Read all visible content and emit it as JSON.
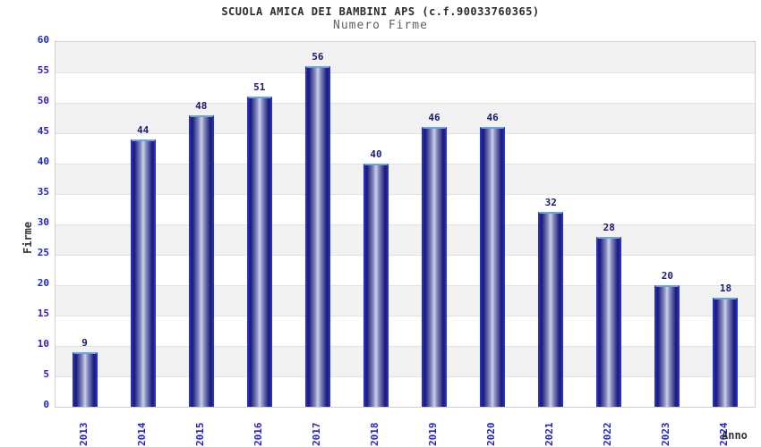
{
  "chart_data": {
    "type": "bar",
    "title": "SCUOLA AMICA DEI BAMBINI APS (c.f.90033760365)",
    "subtitle": "Numero Firme",
    "ylabel": "Firme",
    "xlabel": "Anno",
    "categories": [
      "2013",
      "2014",
      "2015",
      "2016",
      "2017",
      "2018",
      "2019",
      "2020",
      "2021",
      "2022",
      "2023",
      "2024"
    ],
    "values": [
      9,
      44,
      48,
      51,
      56,
      40,
      46,
      46,
      32,
      28,
      20,
      18
    ],
    "ylim": [
      0,
      60
    ],
    "ytick_step": 5,
    "grid": "on",
    "legend_position": "none",
    "colors": {
      "bar_dark": "#20208a",
      "bar_light_center": "#cdd1e8",
      "bar_side_border": "#2531c4",
      "bar_top_border": "#6ca3df",
      "tick_label": "#2222cc",
      "value_label": "#191970",
      "band_gray": "#f2f2f2",
      "band_white": "#ffffff",
      "gridline": "#e2e2e2",
      "plot_border": "#cfcfcf",
      "title_text": "#2b2b2b",
      "subtitle_text": "#616161",
      "axis_title_text": "#333333"
    }
  }
}
